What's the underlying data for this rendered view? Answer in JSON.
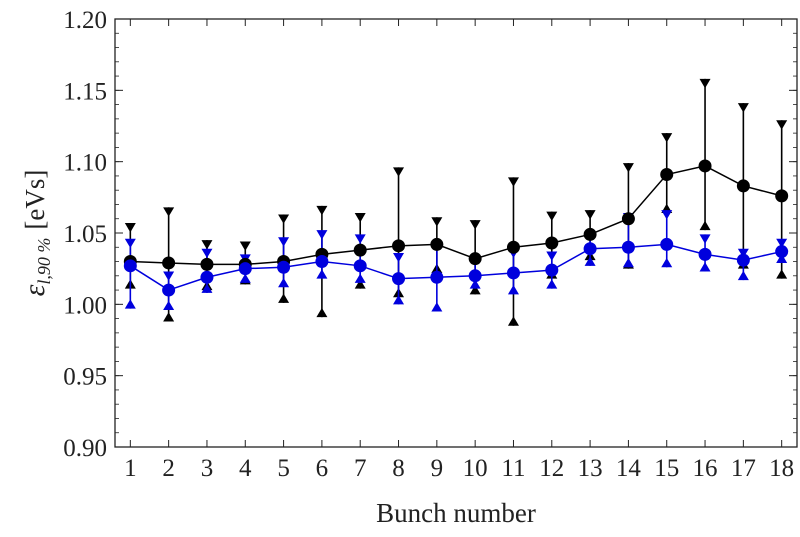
{
  "chart_data": {
    "type": "scatter",
    "xlabel": "Bunch number",
    "ylabel": "ε",
    "ylabel_subscript": "l,90 %",
    "ylabel_unit": "[eVs]",
    "xlim": [
      0.6,
      18.4
    ],
    "ylim": [
      0.9,
      1.2
    ],
    "x_ticks": [
      1,
      2,
      3,
      4,
      5,
      6,
      7,
      8,
      9,
      10,
      11,
      12,
      13,
      14,
      15,
      16,
      17,
      18
    ],
    "y_ticks": [
      0.9,
      0.95,
      1.0,
      1.05,
      1.1,
      1.15,
      1.2
    ],
    "y_tick_labels": [
      "0.90",
      "0.95",
      "1.00",
      "1.05",
      "1.10",
      "1.15",
      "1.20"
    ],
    "grid": false,
    "x": [
      1,
      2,
      3,
      4,
      5,
      6,
      7,
      8,
      9,
      10,
      11,
      12,
      13,
      14,
      15,
      16,
      17,
      18
    ],
    "series": [
      {
        "color": "#000000",
        "values": [
          1.03,
          1.029,
          1.028,
          1.028,
          1.03,
          1.035,
          1.038,
          1.041,
          1.042,
          1.032,
          1.04,
          1.043,
          1.049,
          1.06,
          1.091,
          1.097,
          1.083,
          1.076
        ],
        "err_high": [
          1.057,
          1.068,
          1.045,
          1.044,
          1.063,
          1.069,
          1.064,
          1.096,
          1.061,
          1.059,
          1.089,
          1.065,
          1.066,
          1.099,
          1.12,
          1.158,
          1.141,
          1.129
        ],
        "err_low": [
          1.011,
          0.988,
          1.01,
          1.014,
          1.001,
          0.991,
          1.011,
          1.005,
          1.022,
          1.007,
          0.985,
          1.018,
          1.031,
          1.025,
          1.064,
          1.052,
          1.025,
          1.018
        ]
      },
      {
        "color": "#0000dd",
        "values": [
          1.027,
          1.01,
          1.019,
          1.025,
          1.026,
          1.03,
          1.027,
          1.018,
          1.019,
          1.02,
          1.022,
          1.024,
          1.039,
          1.04,
          1.042,
          1.035,
          1.031,
          1.037
        ],
        "err_high": [
          1.046,
          1.023,
          1.039,
          1.035,
          1.047,
          1.052,
          1.049,
          1.036,
          1.044,
          1.034,
          1.039,
          1.037,
          1.051,
          1.064,
          1.066,
          1.049,
          1.039,
          1.046
        ],
        "err_low": [
          0.997,
          0.996,
          1.008,
          1.015,
          1.012,
          1.018,
          1.015,
          1.0,
          0.995,
          1.011,
          1.007,
          1.011,
          1.027,
          1.026,
          1.026,
          1.023,
          1.017,
          1.029
        ]
      }
    ]
  }
}
